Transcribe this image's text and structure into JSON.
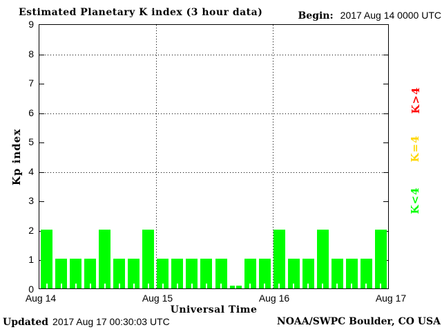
{
  "header": {
    "title": "Estimated Planetary K index (3 hour data)",
    "begin_label": "Begin:",
    "begin_value": "2017 Aug 14 0000 UTC"
  },
  "footer": {
    "updated_label": "Updated",
    "updated_value": "2017 Aug 17 00:30:03 UTC",
    "source": "NOAA/SWPC Boulder, CO USA"
  },
  "legend": [
    {
      "label": "K>4",
      "color": "#ff0000"
    },
    {
      "label": "K=4",
      "color": "#ffd700"
    },
    {
      "label": "K<4",
      "color": "#00ff00"
    }
  ],
  "chart_data": {
    "type": "bar",
    "title": "Estimated Planetary K index (3 hour data)",
    "xlabel": "Universal Time",
    "ylabel": "Kp index",
    "ylim": [
      0,
      9
    ],
    "y_ticks": [
      0,
      1,
      2,
      3,
      4,
      5,
      6,
      7,
      8,
      9
    ],
    "gridlines_y": [
      4,
      6,
      8
    ],
    "grid": "dotted",
    "x_day_ticks": [
      "Aug 14",
      "Aug 15",
      "Aug 16",
      "Aug 17"
    ],
    "interval_hours": 3,
    "begin": "2017 Aug 14 0000 UTC",
    "bar_color": "#00ff00",
    "values": [
      2,
      1,
      1,
      1,
      2,
      1,
      1,
      2,
      1,
      1,
      1,
      1,
      1,
      0,
      1,
      1,
      2,
      1,
      1,
      2,
      1,
      1,
      1,
      2
    ]
  }
}
